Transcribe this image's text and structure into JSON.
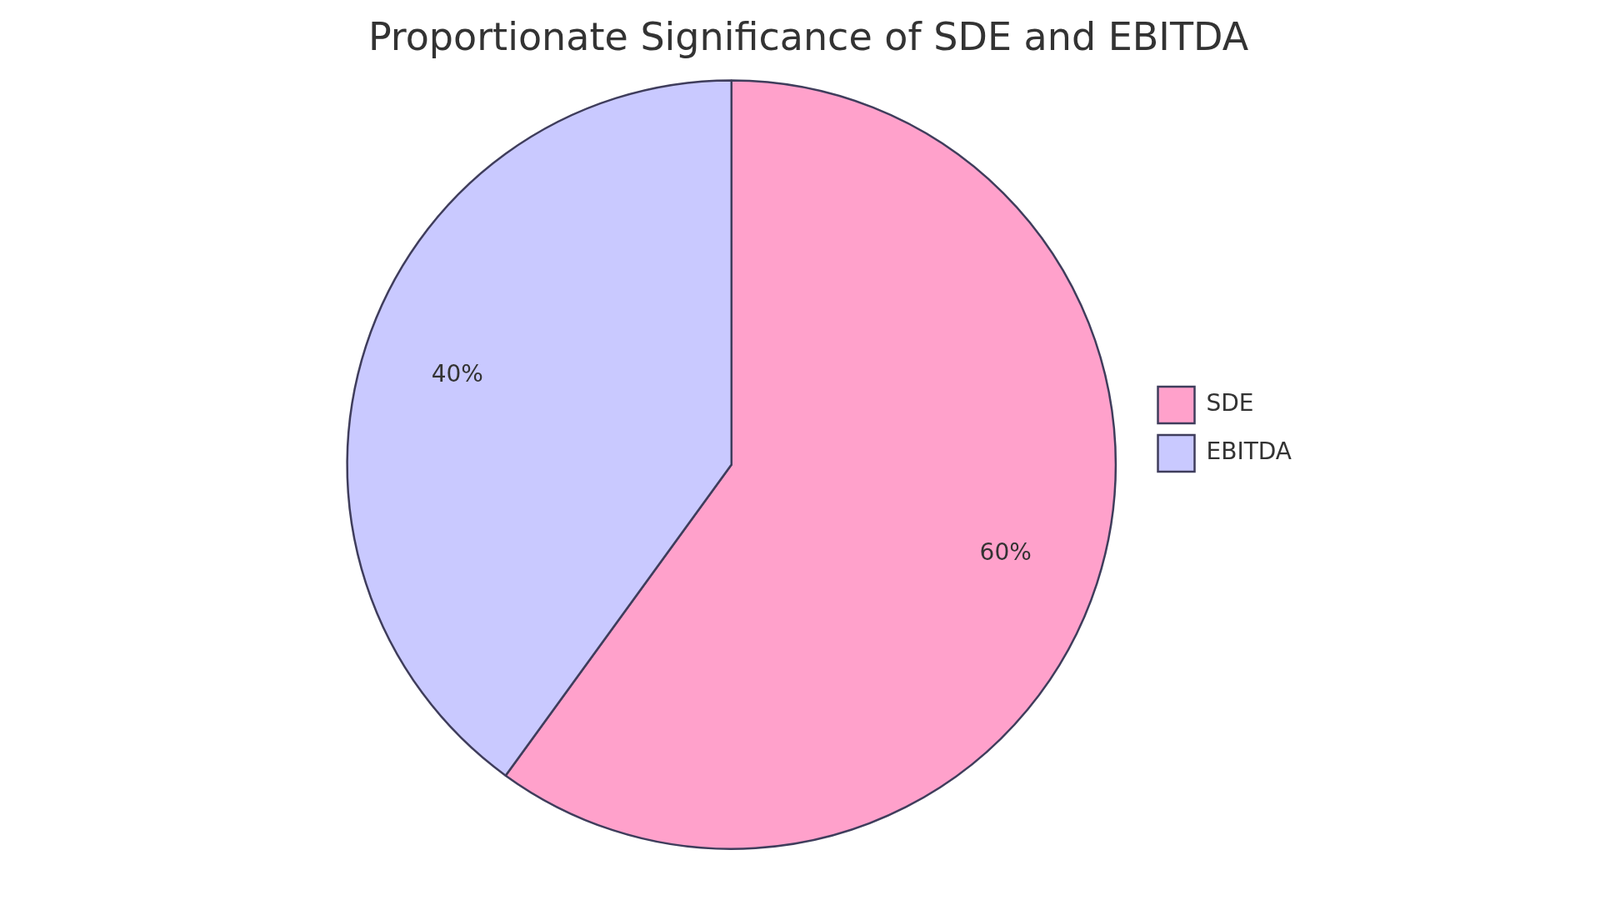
{
  "chart_data": {
    "type": "pie",
    "title": "Proportionate Significance of SDE and EBITDA",
    "categories": [
      "SDE",
      "EBITDA"
    ],
    "values": [
      60,
      40
    ],
    "value_labels": [
      "60%",
      "40%"
    ],
    "colors": [
      "#ffa1cb",
      "#c9c9ff"
    ],
    "data_labels": true,
    "legend": "right"
  }
}
